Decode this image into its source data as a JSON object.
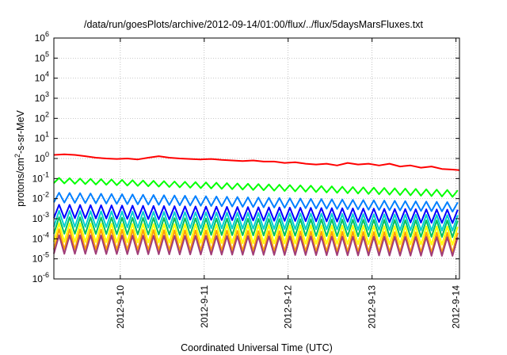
{
  "chart_data": {
    "type": "line",
    "title": "/data/run/goesPlots/archive/2012-09-14/01:00/flux/../flux/5daysMarsFluxes.txt",
    "xlabel": "Coordinated Universal Time (UTC)",
    "ylabel": {
      "base": "protons/cm",
      "sup": "2",
      "rest": "-s-sr-MeV"
    },
    "y_scale": "log",
    "ylim": [
      1e-06,
      1000000.0
    ],
    "xlim": [
      "2012-09-09 05:00",
      "2012-09-14 01:00"
    ],
    "grid": true,
    "legend": "none",
    "x_ticks": [
      {
        "date": "2012-09-10 00:00",
        "label": "2012-9-10"
      },
      {
        "date": "2012-09-11 00:00",
        "label": "2012-9-11"
      },
      {
        "date": "2012-09-12 00:00",
        "label": "2012-9-12"
      },
      {
        "date": "2012-09-13 00:00",
        "label": "2012-9-13"
      },
      {
        "date": "2012-09-14 00:00",
        "label": "2012-9-14"
      }
    ],
    "y_ticks": [
      {
        "value": 1e-06,
        "mant": "10",
        "exp": "-6"
      },
      {
        "value": 1e-05,
        "mant": "10",
        "exp": "-5"
      },
      {
        "value": 0.0001,
        "mant": "10",
        "exp": "-4"
      },
      {
        "value": 0.001,
        "mant": "10",
        "exp": "-3"
      },
      {
        "value": 0.01,
        "mant": "10",
        "exp": "-2"
      },
      {
        "value": 0.1,
        "mant": "10",
        "exp": "-1"
      },
      {
        "value": 1,
        "mant": "10",
        "exp": "0"
      },
      {
        "value": 10,
        "mant": "10",
        "exp": "1"
      },
      {
        "value": 100,
        "mant": "10",
        "exp": "2"
      },
      {
        "value": 1000,
        "mant": "10",
        "exp": "3"
      },
      {
        "value": 10000,
        "mant": "10",
        "exp": "4"
      },
      {
        "value": 100000,
        "mant": "10",
        "exp": "5"
      },
      {
        "value": 1000000,
        "mant": "10",
        "exp": "6"
      }
    ],
    "series": [
      {
        "color": "#ff0000",
        "values": [
          [
            "2012-09-09 05:00",
            1.5
          ],
          [
            "2012-09-09 08:00",
            1.6
          ],
          [
            "2012-09-09 11:00",
            1.5
          ],
          [
            "2012-09-09 14:00",
            1.3
          ],
          [
            "2012-09-09 17:00",
            1.1
          ],
          [
            "2012-09-09 20:00",
            1.0
          ],
          [
            "2012-09-09 23:00",
            0.95
          ],
          [
            "2012-09-10 02:00",
            1.0
          ],
          [
            "2012-09-10 05:00",
            0.9
          ],
          [
            "2012-09-10 08:00",
            1.1
          ],
          [
            "2012-09-10 11:00",
            1.3
          ],
          [
            "2012-09-10 14:00",
            1.1
          ],
          [
            "2012-09-10 17:00",
            1.0
          ],
          [
            "2012-09-10 20:00",
            0.95
          ],
          [
            "2012-09-10 23:00",
            0.9
          ],
          [
            "2012-09-11 02:00",
            0.95
          ],
          [
            "2012-09-11 05:00",
            0.85
          ],
          [
            "2012-09-11 08:00",
            0.8
          ],
          [
            "2012-09-11 11:00",
            0.75
          ],
          [
            "2012-09-11 14:00",
            0.8
          ],
          [
            "2012-09-11 17:00",
            0.7
          ],
          [
            "2012-09-11 20:00",
            0.7
          ],
          [
            "2012-09-11 23:00",
            0.6
          ],
          [
            "2012-09-12 02:00",
            0.65
          ],
          [
            "2012-09-12 05:00",
            0.55
          ],
          [
            "2012-09-12 08:00",
            0.5
          ],
          [
            "2012-09-12 11:00",
            0.55
          ],
          [
            "2012-09-12 14:00",
            0.45
          ],
          [
            "2012-09-12 17:00",
            0.6
          ],
          [
            "2012-09-12 20:00",
            0.5
          ],
          [
            "2012-09-12 23:00",
            0.55
          ],
          [
            "2012-09-13 02:00",
            0.45
          ],
          [
            "2012-09-13 05:00",
            0.55
          ],
          [
            "2012-09-13 08:00",
            0.4
          ],
          [
            "2012-09-13 11:00",
            0.45
          ],
          [
            "2012-09-13 14:00",
            0.35
          ],
          [
            "2012-09-13 17:00",
            0.4
          ],
          [
            "2012-09-13 20:00",
            0.3
          ],
          [
            "2012-09-13 23:00",
            0.28
          ],
          [
            "2012-09-14 01:00",
            0.26
          ]
        ]
      },
      {
        "color": "#00ff00",
        "cycle": {
          "hi_start": 0.11,
          "hi_end": 0.026,
          "lo_start": 0.06,
          "lo_end": 0.012
        }
      },
      {
        "color": "#007fff",
        "cycle": {
          "hi_start": 0.02,
          "hi_end": 0.0065,
          "lo_start": 0.0065,
          "lo_end": 0.0022
        }
      },
      {
        "color": "#0000ff",
        "cycle": {
          "hi_start": 0.005,
          "hi_end": 0.0028,
          "lo_start": 0.0011,
          "lo_end": 0.0006
        }
      },
      {
        "color": "#00d0d0",
        "cycle": {
          "hi_start": 0.0025,
          "hi_end": 0.0015,
          "lo_start": 0.0004,
          "lo_end": 0.00025
        }
      },
      {
        "color": "#00c060",
        "cycle": {
          "hi_start": 0.0012,
          "hi_end": 0.0008,
          "lo_start": 0.00018,
          "lo_end": 0.00012
        }
      },
      {
        "color": "#ffff00",
        "cycle": {
          "hi_start": 0.0006,
          "hi_end": 0.0004,
          "lo_start": 7e-05,
          "lo_end": 5e-05
        }
      },
      {
        "color": "#ffa000",
        "cycle": {
          "hi_start": 0.0003,
          "hi_end": 0.0002,
          "lo_start": 3e-05,
          "lo_end": 2e-05
        }
      },
      {
        "color": "#a03c78",
        "cycle": {
          "hi_start": 0.00015,
          "hi_end": 0.00012,
          "lo_start": 1.8e-05,
          "lo_end": 1.4e-05
        }
      }
    ],
    "cycle_period_hours": 3
  }
}
